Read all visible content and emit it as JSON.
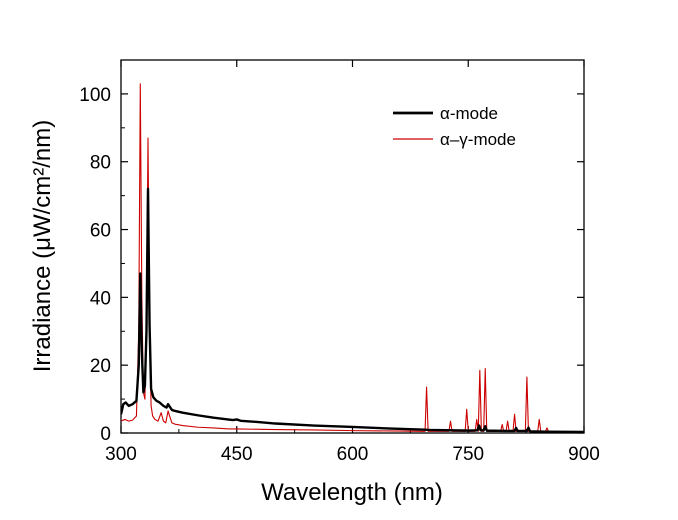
{
  "chart_data": {
    "type": "line",
    "xlabel": "Wavelength (nm)",
    "ylabel": "Irradiance (μW/cm²/nm)",
    "xlim": [
      300,
      900
    ],
    "ylim": [
      0,
      110
    ],
    "xticks": [
      300,
      450,
      600,
      750,
      900
    ],
    "yticks": [
      0,
      20,
      40,
      60,
      80,
      100
    ],
    "grid": false,
    "legend_position": "top-right",
    "series": [
      {
        "name": "α-mode",
        "color": "#000000",
        "points": [
          [
            300,
            5.5
          ],
          [
            303,
            8.5
          ],
          [
            306,
            9.0
          ],
          [
            310,
            8.0
          ],
          [
            315,
            8.5
          ],
          [
            320,
            9.5
          ],
          [
            323,
            20
          ],
          [
            325,
            47
          ],
          [
            327,
            24
          ],
          [
            329,
            12
          ],
          [
            331,
            14
          ],
          [
            333,
            30
          ],
          [
            335,
            72
          ],
          [
            337,
            32
          ],
          [
            339,
            13
          ],
          [
            342,
            10.5
          ],
          [
            346,
            9.5
          ],
          [
            350,
            9.0
          ],
          [
            355,
            8.0
          ],
          [
            359,
            7.5
          ],
          [
            361,
            8.5
          ],
          [
            363,
            7.8
          ],
          [
            366,
            6.8
          ],
          [
            370,
            6.5
          ],
          [
            380,
            6.0
          ],
          [
            400,
            5.2
          ],
          [
            420,
            4.5
          ],
          [
            445,
            3.8
          ],
          [
            450,
            4.0
          ],
          [
            455,
            3.6
          ],
          [
            480,
            3.2
          ],
          [
            500,
            2.8
          ],
          [
            550,
            2.2
          ],
          [
            600,
            1.8
          ],
          [
            650,
            1.3
          ],
          [
            690,
            1.0
          ],
          [
            700,
            0.9
          ],
          [
            750,
            0.7
          ],
          [
            762,
            0.8
          ],
          [
            764,
            2.2
          ],
          [
            766,
            0.8
          ],
          [
            770,
            0.8
          ],
          [
            772,
            2.0
          ],
          [
            774,
            0.7
          ],
          [
            800,
            0.6
          ],
          [
            810,
            0.6
          ],
          [
            812,
            1.5
          ],
          [
            814,
            0.6
          ],
          [
            826,
            0.6
          ],
          [
            828,
            1.6
          ],
          [
            830,
            0.5
          ],
          [
            850,
            0.4
          ],
          [
            900,
            0.3
          ]
        ]
      },
      {
        "name": "α–γ-mode",
        "color": "#cc0000",
        "points": [
          [
            300,
            3.5
          ],
          [
            305,
            4.0
          ],
          [
            310,
            3.5
          ],
          [
            315,
            3.8
          ],
          [
            320,
            5.0
          ],
          [
            323,
            30
          ],
          [
            325,
            103
          ],
          [
            327,
            40
          ],
          [
            329,
            12
          ],
          [
            331,
            10
          ],
          [
            333,
            35
          ],
          [
            335,
            87
          ],
          [
            337,
            30
          ],
          [
            339,
            8
          ],
          [
            341,
            5.0
          ],
          [
            344,
            4.0
          ],
          [
            348,
            3.5
          ],
          [
            352,
            6.0
          ],
          [
            355,
            3.5
          ],
          [
            358,
            3.0
          ],
          [
            361,
            6.5
          ],
          [
            363,
            5.0
          ],
          [
            366,
            3.0
          ],
          [
            370,
            2.6
          ],
          [
            380,
            2.2
          ],
          [
            400,
            1.7
          ],
          [
            420,
            1.5
          ],
          [
            440,
            1.2
          ],
          [
            450,
            1.2
          ],
          [
            500,
            1.0
          ],
          [
            550,
            0.9
          ],
          [
            600,
            0.7
          ],
          [
            650,
            0.6
          ],
          [
            690,
            0.5
          ],
          [
            694,
            0.5
          ],
          [
            696,
            13.5
          ],
          [
            698,
            0.5
          ],
          [
            725,
            0.5
          ],
          [
            727,
            3.5
          ],
          [
            729,
            0.5
          ],
          [
            746,
            0.5
          ],
          [
            748,
            7.0
          ],
          [
            750,
            0.5
          ],
          [
            759,
            0.5
          ],
          [
            761,
            4.0
          ],
          [
            763,
            0.5
          ],
          [
            765,
            18.5
          ],
          [
            767,
            0.5
          ],
          [
            770,
            0.5
          ],
          [
            772,
            19.0
          ],
          [
            774,
            0.5
          ],
          [
            792,
            0.5
          ],
          [
            794,
            2.5
          ],
          [
            796,
            0.5
          ],
          [
            799,
            0.5
          ],
          [
            801,
            3.5
          ],
          [
            803,
            0.5
          ],
          [
            808,
            0.5
          ],
          [
            810,
            5.5
          ],
          [
            812,
            0.5
          ],
          [
            824,
            0.5
          ],
          [
            826,
            16.5
          ],
          [
            828,
            0.5
          ],
          [
            840,
            0.5
          ],
          [
            842,
            4.0
          ],
          [
            844,
            0.5
          ],
          [
            850,
            0.4
          ],
          [
            852,
            1.5
          ],
          [
            854,
            0.4
          ],
          [
            900,
            0.3
          ]
        ]
      }
    ]
  }
}
